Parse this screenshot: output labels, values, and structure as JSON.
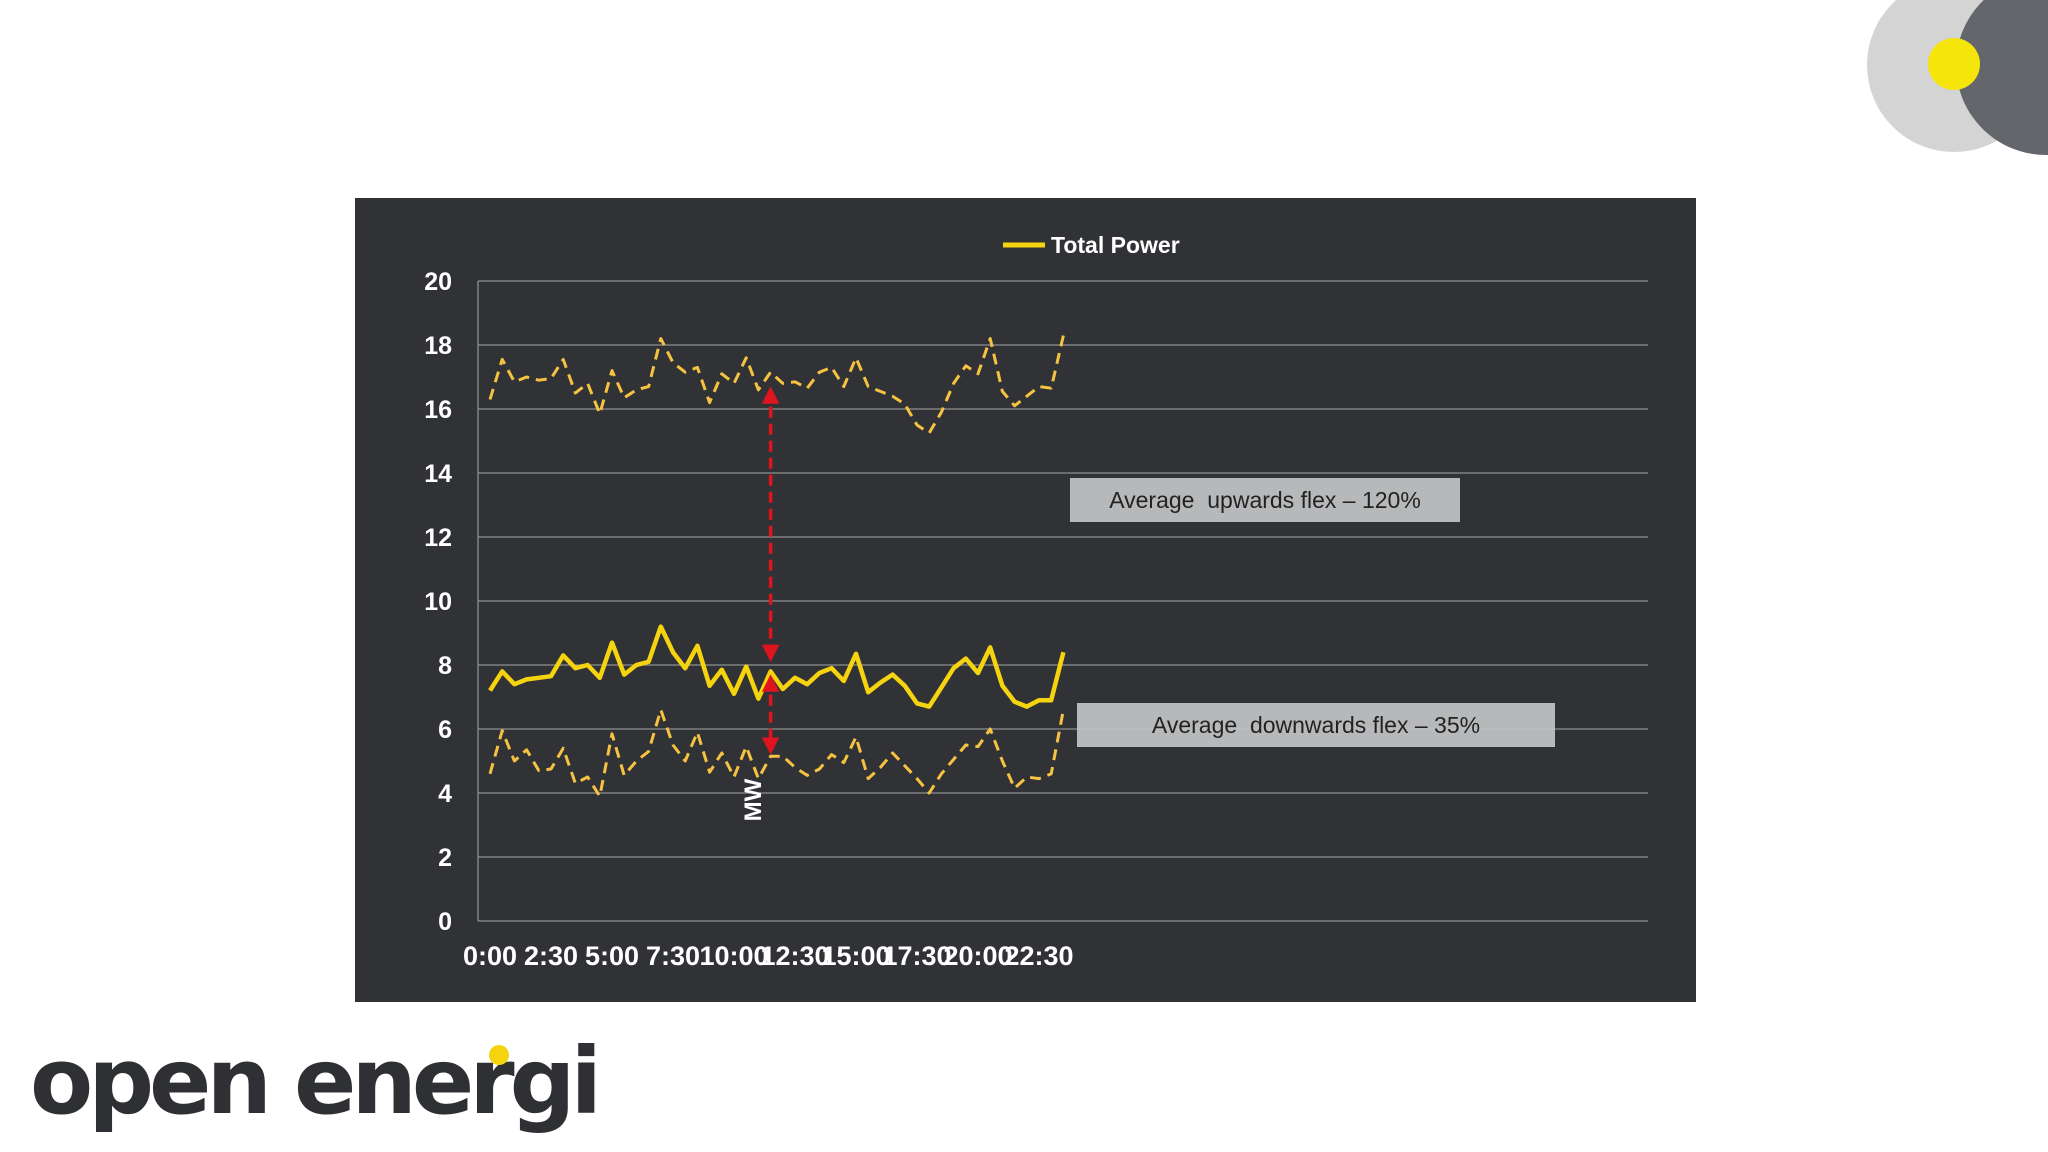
{
  "brand": {
    "name": "open energi",
    "accent": "#f5d30f"
  },
  "chart_data": {
    "type": "line",
    "legend": {
      "label": "Total Power",
      "position": "top-center"
    },
    "ylabel": "MW",
    "xlabel": "",
    "ylim": [
      0,
      20
    ],
    "y_ticks": [
      0,
      2,
      4,
      6,
      8,
      10,
      12,
      14,
      16,
      18,
      20
    ],
    "x_tick_labels": [
      "0:00",
      "2:30",
      "5:00",
      "7:30",
      "10:00",
      "12:30",
      "15:00",
      "17:30",
      "20:00",
      "22:30"
    ],
    "x_interval_minutes": 30,
    "grid": true,
    "colors": {
      "background": "#303235",
      "line": "#f5d30f",
      "dashed": "#f5c242",
      "arrow": "#e0141e",
      "grid": "#8c8e91",
      "text": "#ffffff"
    },
    "series": [
      {
        "name": "Total Power",
        "style": "solid",
        "values": [
          7.2,
          7.8,
          7.4,
          7.55,
          7.6,
          7.65,
          8.3,
          7.9,
          8.0,
          7.6,
          8.7,
          7.7,
          8.0,
          8.1,
          9.2,
          8.4,
          7.9,
          8.6,
          7.35,
          7.85,
          7.1,
          7.95,
          6.95,
          7.8,
          7.25,
          7.6,
          7.4,
          7.75,
          7.9,
          7.5,
          8.35,
          7.15,
          7.45,
          7.7,
          7.35,
          6.8,
          6.7,
          7.3,
          7.9,
          8.2,
          7.75,
          8.55,
          7.35,
          6.85,
          6.7,
          6.9,
          6.9,
          8.4
        ]
      },
      {
        "style": "dashed",
        "values": [
          16.3,
          17.55,
          16.85,
          17.0,
          16.9,
          16.95,
          17.55,
          16.5,
          16.8,
          15.85,
          17.2,
          16.35,
          16.6,
          16.7,
          18.2,
          17.45,
          17.15,
          17.3,
          16.2,
          17.1,
          16.8,
          17.6,
          16.6,
          17.15,
          16.8,
          16.85,
          16.65,
          17.15,
          17.3,
          16.7,
          17.6,
          16.7,
          16.55,
          16.4,
          16.15,
          15.5,
          15.25,
          15.9,
          16.8,
          17.35,
          17.1,
          18.2,
          16.55,
          16.1,
          16.4,
          16.7,
          16.65,
          18.3
        ]
      },
      {
        "style": "dashed",
        "values": [
          4.6,
          5.95,
          5.0,
          5.35,
          4.7,
          4.75,
          5.4,
          4.3,
          4.5,
          3.9,
          5.85,
          4.55,
          5.0,
          5.3,
          6.6,
          5.5,
          5.0,
          5.9,
          4.65,
          5.25,
          4.5,
          5.45,
          4.45,
          5.15,
          5.15,
          4.8,
          4.55,
          4.75,
          5.2,
          4.95,
          5.75,
          4.45,
          4.8,
          5.25,
          4.85,
          4.45,
          4.0,
          4.6,
          5.05,
          5.5,
          5.45,
          6.0,
          5.0,
          4.15,
          4.5,
          4.45,
          4.6,
          6.6
        ]
      }
    ],
    "annotations": [
      {
        "text": "Average  upwards flex – 120%",
        "arrow_from": 16.6,
        "arrow_to": 8.2,
        "at_index": 23
      },
      {
        "text": "Average  downwards flex – 35%",
        "arrow_from": 7.6,
        "arrow_to": 5.3,
        "at_index": 23
      }
    ]
  }
}
